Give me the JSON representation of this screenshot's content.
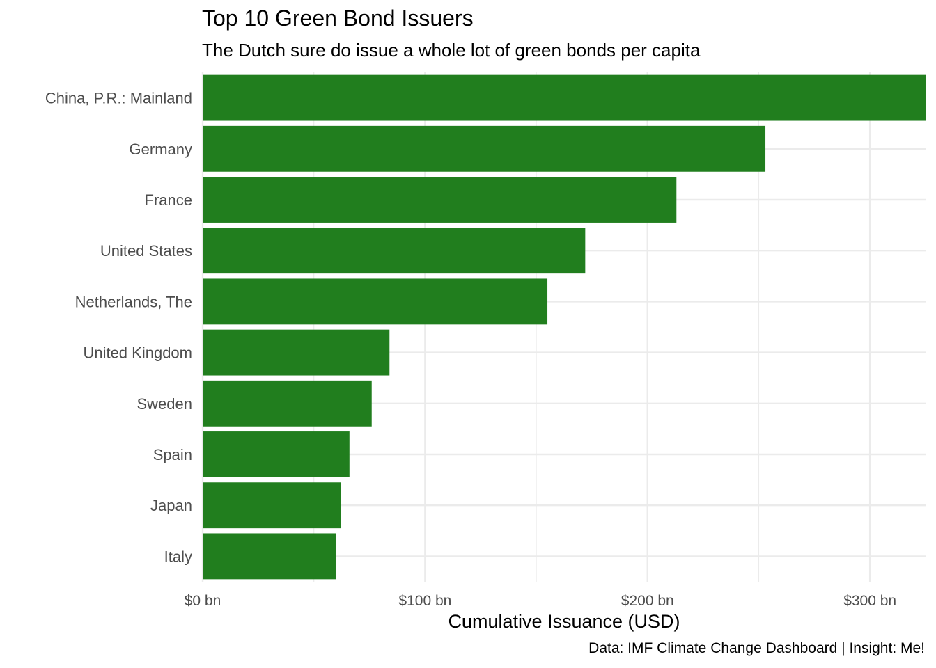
{
  "title": "Top 10 Green Bond Issuers",
  "subtitle": "The Dutch sure do issue a whole lot of green bonds per capita",
  "caption": "Data: IMF Climate Change Dashboard | Insight: Me!",
  "bar_color": "#217e1e",
  "grid_color": "#ebebeb",
  "chart_data": {
    "type": "bar",
    "orientation": "horizontal",
    "title": "Top 10 Green Bond Issuers",
    "subtitle": "The Dutch sure do issue a whole lot of green bonds per capita",
    "xlabel": "Cumulative Issuance (USD)",
    "ylabel": "",
    "categories": [
      "China, P.R.: Mainland",
      "Germany",
      "France",
      "United States",
      "Netherlands, The",
      "United Kingdom",
      "Sweden",
      "Spain",
      "Japan",
      "Italy"
    ],
    "values": [
      325,
      253,
      213,
      172,
      155,
      84,
      76,
      66,
      62,
      60
    ],
    "value_unit": "USD bn",
    "xlim": [
      0,
      325
    ],
    "x_ticks": [
      0,
      100,
      200,
      300
    ],
    "x_tick_labels": [
      "$0 bn",
      "$100 bn",
      "$200 bn",
      "$300 bn"
    ],
    "grid": true,
    "legend": "none"
  }
}
